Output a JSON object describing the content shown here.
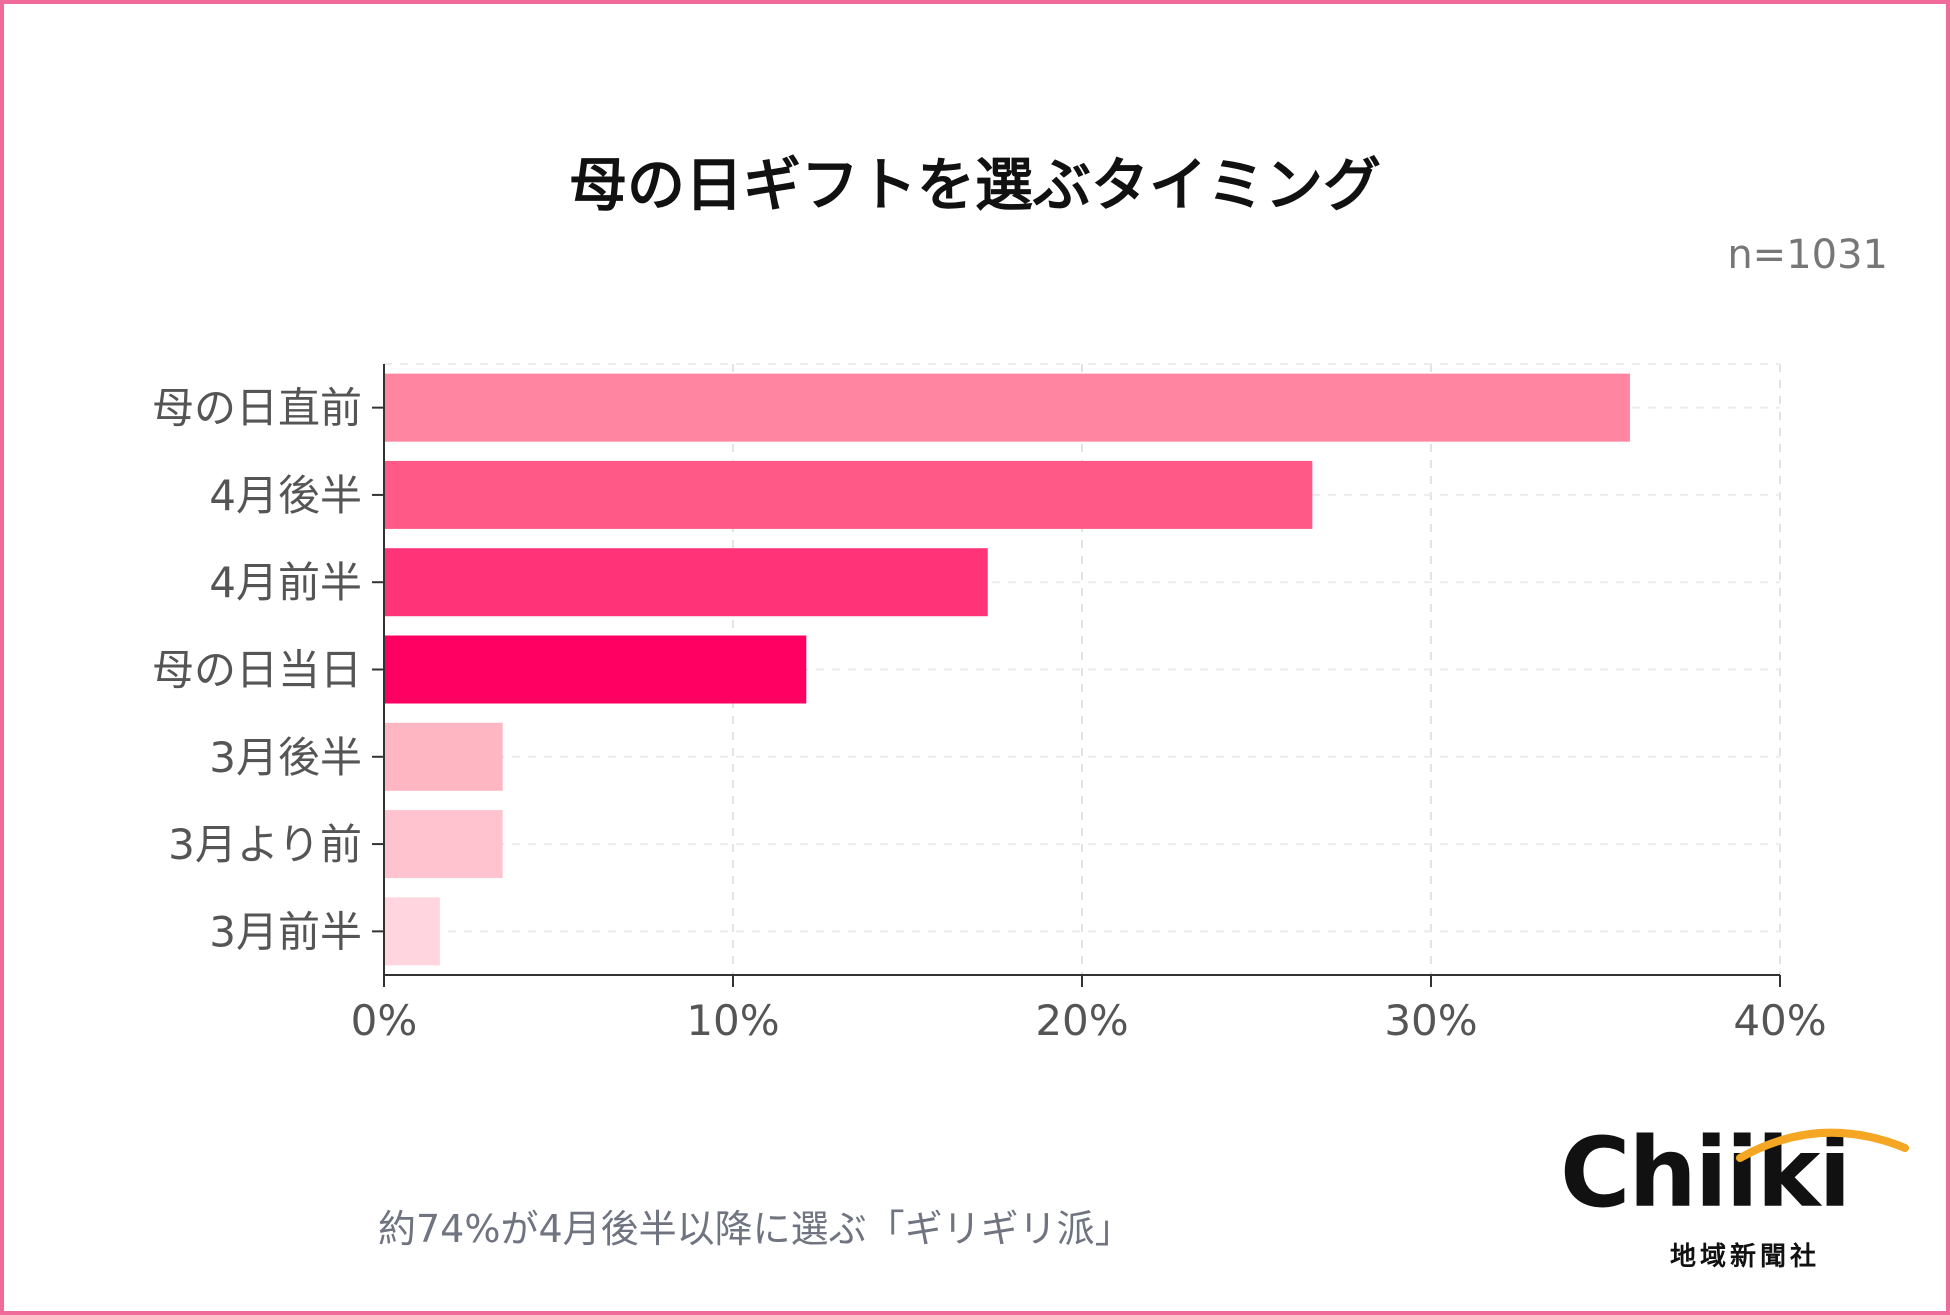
{
  "chart_data": {
    "type": "bar",
    "orientation": "horizontal",
    "title": "母の日ギフトを選ぶタイミング",
    "subtitle": "n=1031",
    "categories": [
      "母の日直前",
      "4月後半",
      "4月前半",
      "母の日当日",
      "3月後半",
      "3月より前",
      "3月前半"
    ],
    "values": [
      35.7,
      26.6,
      17.3,
      12.1,
      3.4,
      3.4,
      1.6
    ],
    "bar_colors": [
      "#ff85a1",
      "#ff5a87",
      "#ff3378",
      "#ff0062",
      "#ffb6c3",
      "#ffc3cf",
      "#ffd6df"
    ],
    "xlim": [
      0,
      40
    ],
    "xticks": [
      "0%",
      "10%",
      "20%",
      "30%",
      "40%"
    ],
    "xtick_values": [
      0,
      10,
      20,
      30,
      40
    ],
    "grid": true,
    "xlabel": "",
    "ylabel": ""
  },
  "caption": "約74%が4月後半以降に選ぶ「ギリギリ派」",
  "logo": {
    "wordmark": "Chiiki",
    "subtitle": "地域新聞社"
  },
  "colors": {
    "border": "#f06b99",
    "logo_accent": "#f5a623"
  }
}
